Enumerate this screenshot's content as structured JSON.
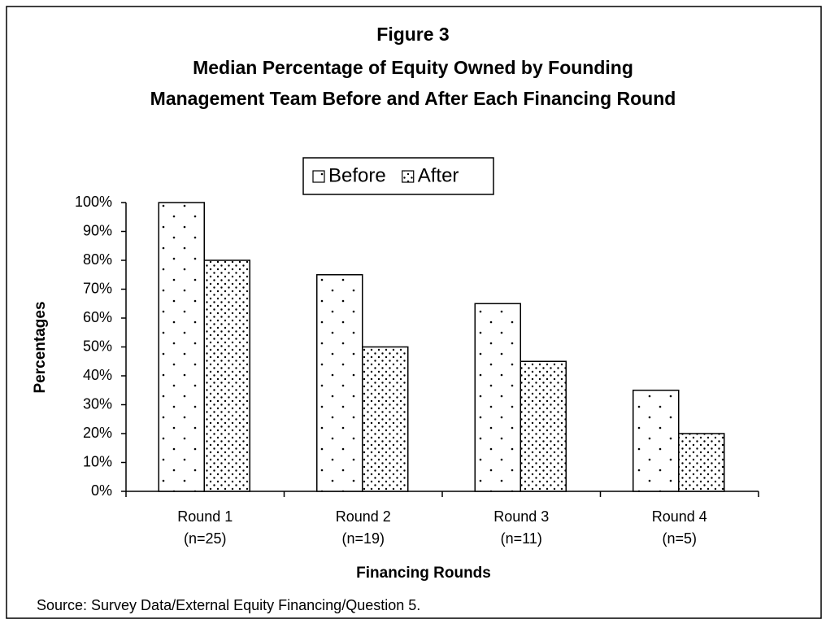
{
  "chart_data": {
    "type": "bar",
    "title": [
      "Figure 3",
      "Median Percentage of Equity Owned by Founding",
      "Management Team Before and After Each Financing Round"
    ],
    "categories": [
      [
        "Round 1",
        "(n=25)"
      ],
      [
        "Round 2",
        "(n=19)"
      ],
      [
        "Round 3",
        "(n=11)"
      ],
      [
        "Round 4",
        "(n=5)"
      ]
    ],
    "series": [
      {
        "name": "Before",
        "color": "#ffffff",
        "values": [
          100,
          75,
          65,
          35
        ]
      },
      {
        "name": "After",
        "color": "#ffffff",
        "values": [
          80,
          50,
          45,
          20
        ]
      }
    ],
    "ylim": [
      0,
      100
    ],
    "yticks": [
      {
        "value": 0,
        "label": "0%"
      },
      {
        "value": 10,
        "label": "10%"
      },
      {
        "value": 20,
        "label": "20%"
      },
      {
        "value": 30,
        "label": "30%"
      },
      {
        "value": 40,
        "label": "40%"
      },
      {
        "value": 50,
        "label": "50%"
      },
      {
        "value": 60,
        "label": "60%"
      },
      {
        "value": 70,
        "label": "70%"
      },
      {
        "value": 80,
        "label": "80%"
      },
      {
        "value": 90,
        "label": "90%"
      },
      {
        "value": 100,
        "label": "100%"
      }
    ],
    "ylabel": "Percentages",
    "xlabel": "Financing Rounds",
    "legend": "top",
    "source": "Source: Survey Data/External Equity Financing/Question 5."
  }
}
